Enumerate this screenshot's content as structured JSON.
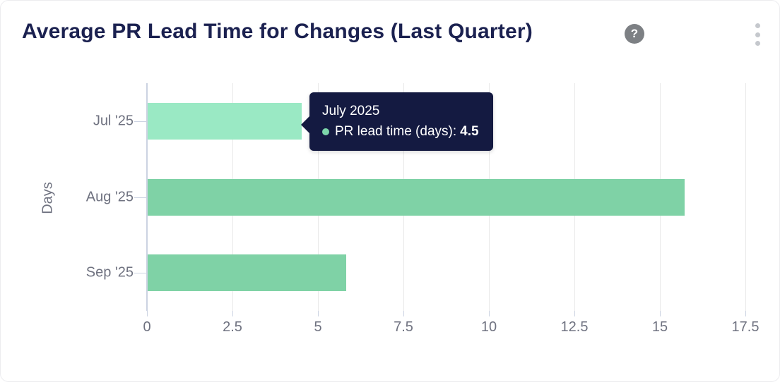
{
  "card": {
    "title": "Average PR Lead Time for Changes (Last Quarter)",
    "help_glyph": "?"
  },
  "colors": {
    "title_text": "#1b2150",
    "axis_text": "#6f7280",
    "gridline": "#e9e9e9",
    "axis_line": "#ccd3e2",
    "bar_default": "#7fd2a6",
    "bar_hover": "#9ae9c4",
    "tooltip_bg": "#141a41",
    "tooltip_dot": "#7dd6aa"
  },
  "chart_data": {
    "type": "bar",
    "orientation": "horizontal",
    "title": "Average PR Lead Time for Changes (Last Quarter)",
    "categories": [
      "Jul '25",
      "Aug '25",
      "Sep '25"
    ],
    "series": [
      {
        "name": "PR lead time (days)",
        "values": [
          4.5,
          15.7,
          5.8
        ]
      }
    ],
    "xlabel": "",
    "ylabel": "Days",
    "xlim": [
      0,
      17.5
    ],
    "xticks": [
      0,
      2.5,
      5,
      7.5,
      10,
      12.5,
      15,
      17.5
    ],
    "grid": "vertical-only",
    "legend": "none",
    "hovered_index": 0
  },
  "tooltip": {
    "title": "July 2025",
    "series_label": "PR lead time (days):",
    "value": "4.5"
  }
}
